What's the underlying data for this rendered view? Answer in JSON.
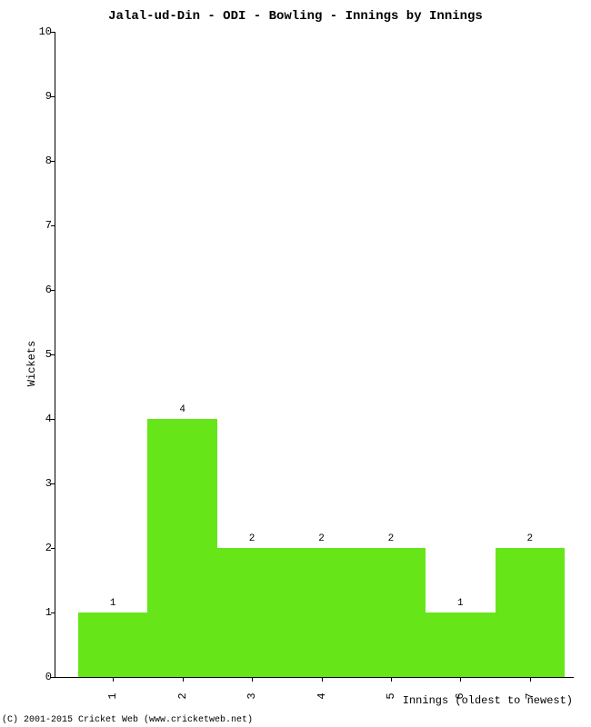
{
  "chart": {
    "type": "bar",
    "title": "Jalal-ud-Din - ODI - Bowling - Innings by Innings",
    "title_fontsize": 14,
    "xlabel": "Innings (oldest to newest)",
    "ylabel": "Wickets",
    "label_fontsize": 12,
    "categories": [
      "1",
      "2",
      "3",
      "4",
      "5",
      "6",
      "7"
    ],
    "values": [
      1,
      4,
      2,
      2,
      2,
      1,
      2
    ],
    "bar_color": "#66e619",
    "bar_width": 1.0,
    "ylim": [
      0,
      10
    ],
    "ytick_step": 1,
    "background_color": "#ffffff",
    "axis_color": "#000000",
    "tick_fontsize": 12,
    "bar_label_fontsize": 11,
    "copyright": "(C) 2001-2015 Cricket Web (www.cricketweb.net)"
  }
}
